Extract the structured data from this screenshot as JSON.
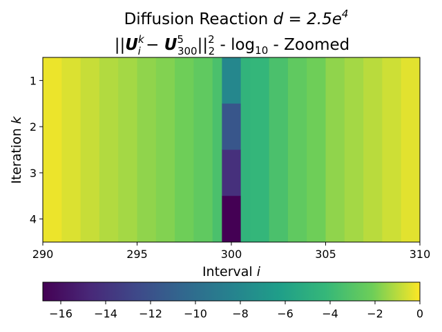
{
  "chart_data": {
    "type": "heatmap",
    "title_line1": "Diffusion Reaction ",
    "title_line1_math": "d = 2.5e",
    "title_line1_sup": "4",
    "title_line2_prefix": "||",
    "title_line2_U": "U",
    "title_line2_sub_i": "i",
    "title_line2_sup_k": "k",
    "title_line2_minus": " − ",
    "title_line2_sub_300": "300",
    "title_line2_sup_5": "5",
    "title_line2_norm": "||",
    "title_line2_sub_2": "2",
    "title_line2_sup_2": "2",
    "title_line2_suffix": " - log",
    "title_line2_sub_10": "10",
    "title_line2_tail": "  - Zoomed",
    "xlabel_text": "Interval ",
    "xlabel_var": "i",
    "ylabel_text": "Iteration ",
    "ylabel_var": "k",
    "x_range": [
      290,
      310
    ],
    "x_ticks": [
      290,
      295,
      300,
      305,
      310
    ],
    "y_ticks": [
      1,
      2,
      3,
      4
    ],
    "rows": [
      1,
      2,
      3,
      4
    ],
    "colorbar_range": [
      -16.8,
      0
    ],
    "colorbar_ticks": [
      -16,
      -14,
      -12,
      -10,
      -8,
      -6,
      -4,
      -2,
      0
    ],
    "colormap": "viridis",
    "column_values": [
      -0.25,
      -0.5,
      -0.8,
      -1.1,
      -1.3,
      -1.6,
      -1.8,
      -2.1,
      -2.6,
      -3.4,
      -4.5,
      -4.3,
      -3.4,
      -2.6,
      -2.1,
      -1.6,
      -1.3,
      -1.0,
      -0.7,
      -0.4
    ],
    "center_interval": 300,
    "center_values": [
      -8.0,
      -11.7,
      -14.2,
      -16.8
    ]
  }
}
